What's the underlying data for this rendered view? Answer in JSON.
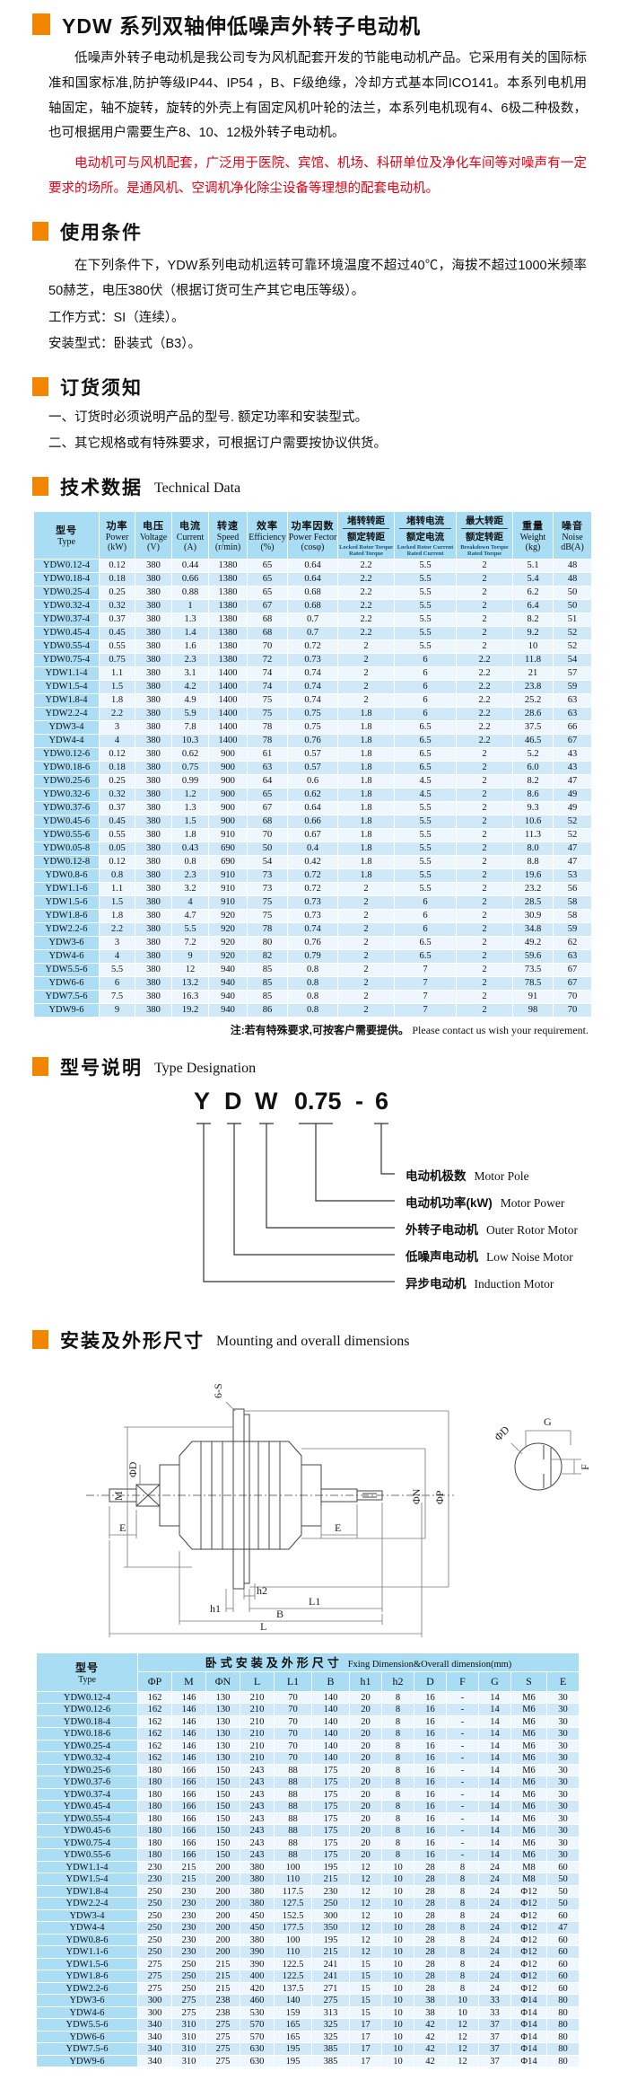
{
  "colors": {
    "accent_orange": "#f28600",
    "highlight_red": "#e60012",
    "table_header_blue": "#a9ddf3",
    "row_blue": "#cfe9f8",
    "row_pale": "#eef7fd"
  },
  "page": {
    "title_zh": "YDW 系列双轴伸低噪声外转子电动机",
    "intro_p1": "低噪声外转子电动机是我公司专为风机配套开发的节能电动机产品。它采用有关的国际标准和国家标准,防护等级IP44、IP54 ，B、F级绝缘，冷却方式基本同ICO141。本系列电机用轴固定，轴不旋转，旋转的外壳上有固定风机叶轮的法兰，本系列电机现有4、6极二种极数，也可根据用户需要生产8、10、12极外转子电动机。",
    "intro_p2": "电动机可与风机配套，广泛用于医院、宾馆、机场、科研单位及净化车间等对噪声有一定要求的场所。是通风机、空调机净化除尘设备等理想的配套电动机。"
  },
  "usage": {
    "heading_zh": "使用条件",
    "p1": "在下列条件下，YDW系列电动机运转可靠环境温度不超过40℃，海拔不超过1000米频率50赫芝，电压380伏（根据订货可生产其它电压等级）。",
    "line1": "工作方式：SI（连续）。",
    "line2": "安装型式：卧装式（B3）。"
  },
  "ordering": {
    "heading_zh": "订货须知",
    "item1": "一、订货时必须说明产品的型号. 额定功率和安装型式。",
    "item2": "二、其它规格或有特殊要求，可根据订户需要按协议供货。"
  },
  "tech": {
    "heading_zh": "技术数据",
    "heading_en": "Technical Data",
    "note_zh": "注:若有特殊要求,可按客户需要提供。",
    "note_en": "Please contact us wish your requirement.",
    "columns": [
      {
        "zh": "型号",
        "en": "Type"
      },
      {
        "zh": "功率",
        "en": "Power",
        "unit": "(kW)"
      },
      {
        "zh": "电压",
        "en": "Voltage",
        "unit": "(V)"
      },
      {
        "zh": "电流",
        "en": "Current",
        "unit": "(A)"
      },
      {
        "zh": "转速",
        "en": "Speed",
        "unit": "(r/min)"
      },
      {
        "zh": "效率",
        "en": "Efficiency",
        "unit": "(%)"
      },
      {
        "zh": "功率因数",
        "en": "Power Fector",
        "unit": "(cosφ)"
      },
      {
        "zh_top": "堵转转距",
        "zh_bot": "额定转距",
        "en": "Locked Rotor Torque Rated Torque"
      },
      {
        "zh_top": "堵转电流",
        "zh_bot": "额定电流",
        "en": "Locked Rotor Current Rated Current"
      },
      {
        "zh_top": "最大转距",
        "zh_bot": "额定转距",
        "en": "Breakdown Torque Rated Torque"
      },
      {
        "zh": "重量",
        "en": "Weight",
        "unit": "(kg)"
      },
      {
        "zh": "噪音",
        "en": "Noise",
        "unit": "dB(A)"
      }
    ],
    "rows": [
      [
        "YDW0.12-4",
        "0.12",
        "380",
        "0.44",
        "1380",
        "65",
        "0.64",
        "2.2",
        "5.5",
        "2",
        "5.1",
        "48"
      ],
      [
        "YDW0.18-4",
        "0.18",
        "380",
        "0.66",
        "1380",
        "65",
        "0.64",
        "2.2",
        "5.5",
        "2",
        "5.4",
        "48"
      ],
      [
        "YDW0.25-4",
        "0.25",
        "380",
        "0.88",
        "1380",
        "65",
        "0.68",
        "2.2",
        "5.5",
        "2",
        "6.2",
        "50"
      ],
      [
        "YDW0.32-4",
        "0.32",
        "380",
        "1",
        "1380",
        "67",
        "0.68",
        "2.2",
        "5.5",
        "2",
        "6.4",
        "50"
      ],
      [
        "YDW0.37-4",
        "0.37",
        "380",
        "1.3",
        "1380",
        "68",
        "0.7",
        "2.2",
        "5.5",
        "2",
        "8.2",
        "51"
      ],
      [
        "YDW0.45-4",
        "0.45",
        "380",
        "1.4",
        "1380",
        "68",
        "0.7",
        "2.2",
        "5.5",
        "2",
        "9.2",
        "52"
      ],
      [
        "YDW0.55-4",
        "0.55",
        "380",
        "1.6",
        "1380",
        "70",
        "0.72",
        "2",
        "5.5",
        "2",
        "10",
        "52"
      ],
      [
        "YDW0.75-4",
        "0.75",
        "380",
        "2.3",
        "1380",
        "72",
        "0.73",
        "2",
        "6",
        "2.2",
        "11.8",
        "54"
      ],
      [
        "YDW1.1-4",
        "1.1",
        "380",
        "3.1",
        "1400",
        "74",
        "0.74",
        "2",
        "6",
        "2.2",
        "21",
        "57"
      ],
      [
        "YDW1.5-4",
        "1.5",
        "380",
        "4.2",
        "1400",
        "74",
        "0.74",
        "2",
        "6",
        "2.2",
        "23.8",
        "59"
      ],
      [
        "YDW1.8-4",
        "1.8",
        "380",
        "4.9",
        "1400",
        "75",
        "0.74",
        "2",
        "6",
        "2.2",
        "25.2",
        "63"
      ],
      [
        "YDW2.2-4",
        "2.2",
        "380",
        "5.9",
        "1400",
        "75",
        "0.75",
        "1.8",
        "6",
        "2.2",
        "28.6",
        "63"
      ],
      [
        "YDW3-4",
        "3",
        "380",
        "7.8",
        "1400",
        "78",
        "0.75",
        "1.8",
        "6.5",
        "2.2",
        "37.5",
        "66"
      ],
      [
        "YDW4-4",
        "4",
        "380",
        "10.3",
        "1400",
        "78",
        "0.76",
        "1.8",
        "6.5",
        "2.2",
        "46.5",
        "67"
      ],
      [
        "YDW0.12-6",
        "0.12",
        "380",
        "0.62",
        "900",
        "61",
        "0.57",
        "1.8",
        "6.5",
        "2",
        "5.2",
        "43"
      ],
      [
        "YDW0.18-6",
        "0.18",
        "380",
        "0.75",
        "900",
        "63",
        "0.57",
        "1.8",
        "6.5",
        "2",
        "6.0",
        "43"
      ],
      [
        "YDW0.25-6",
        "0.25",
        "380",
        "0.99",
        "900",
        "64",
        "0.6",
        "1.8",
        "4.5",
        "2",
        "8.2",
        "47"
      ],
      [
        "YDW0.32-6",
        "0.32",
        "380",
        "1.2",
        "900",
        "65",
        "0.62",
        "1.8",
        "4.5",
        "2",
        "8.6",
        "49"
      ],
      [
        "YDW0.37-6",
        "0.37",
        "380",
        "1.3",
        "900",
        "67",
        "0.64",
        "1.8",
        "5.5",
        "2",
        "9.3",
        "49"
      ],
      [
        "YDW0.45-6",
        "0.45",
        "380",
        "1.5",
        "900",
        "68",
        "0.66",
        "1.8",
        "5.5",
        "2",
        "10.6",
        "52"
      ],
      [
        "YDW0.55-6",
        "0.55",
        "380",
        "1.8",
        "910",
        "70",
        "0.67",
        "1.8",
        "5.5",
        "2",
        "11.3",
        "52"
      ],
      [
        "YDW0.05-8",
        "0.05",
        "380",
        "0.43",
        "690",
        "50",
        "0.4",
        "1.8",
        "5.5",
        "2",
        "8.0",
        "47"
      ],
      [
        "YDW0.12-8",
        "0.12",
        "380",
        "0.8",
        "690",
        "54",
        "0.42",
        "1.8",
        "5.5",
        "2",
        "8.8",
        "47"
      ],
      [
        "YDW0.8-6",
        "0.8",
        "380",
        "2.3",
        "910",
        "73",
        "0.72",
        "1.8",
        "5.5",
        "2",
        "19.6",
        "53"
      ],
      [
        "YDW1.1-6",
        "1.1",
        "380",
        "3.2",
        "910",
        "73",
        "0.72",
        "2",
        "5.5",
        "2",
        "23.2",
        "56"
      ],
      [
        "YDW1.5-6",
        "1.5",
        "380",
        "4",
        "910",
        "75",
        "0.73",
        "2",
        "6",
        "2",
        "28.5",
        "58"
      ],
      [
        "YDW1.8-6",
        "1.8",
        "380",
        "4.7",
        "920",
        "75",
        "0.73",
        "2",
        "6",
        "2",
        "30.9",
        "58"
      ],
      [
        "YDW2.2-6",
        "2.2",
        "380",
        "5.5",
        "920",
        "78",
        "0.74",
        "2",
        "6",
        "2",
        "34.8",
        "59"
      ],
      [
        "YDW3-6",
        "3",
        "380",
        "7.2",
        "920",
        "80",
        "0.76",
        "2",
        "6.5",
        "2",
        "49.2",
        "62"
      ],
      [
        "YDW4-6",
        "4",
        "380",
        "9",
        "920",
        "82",
        "0.79",
        "2",
        "6.5",
        "2",
        "59.6",
        "63"
      ],
      [
        "YDW5.5-6",
        "5.5",
        "380",
        "12",
        "940",
        "85",
        "0.8",
        "2",
        "7",
        "2",
        "73.5",
        "67"
      ],
      [
        "YDW6-6",
        "6",
        "380",
        "13.2",
        "940",
        "85",
        "0.8",
        "2",
        "7",
        "2",
        "78.5",
        "67"
      ],
      [
        "YDW7.5-6",
        "7.5",
        "380",
        "16.3",
        "940",
        "85",
        "0.8",
        "2",
        "7",
        "2",
        "91",
        "70"
      ],
      [
        "YDW9-6",
        "9",
        "380",
        "19.2",
        "940",
        "86",
        "0.8",
        "2",
        "7",
        "2",
        "98",
        "70"
      ]
    ]
  },
  "type_designation": {
    "heading_zh": "型号说明",
    "heading_en": "Type Designation",
    "code_parts": [
      "Y",
      "D",
      "W",
      "0.75",
      "-",
      "6"
    ],
    "labels": [
      {
        "zh": "电动机极数",
        "en": "Motor Pole"
      },
      {
        "zh": "电动机功率(kW)",
        "en": "Motor  Power"
      },
      {
        "zh": "外转子电动机",
        "en": "Outer Rotor Motor"
      },
      {
        "zh": "低噪声电动机",
        "en": "Low Noise Motor"
      },
      {
        "zh": "异步电动机",
        "en": "Induction Motor"
      }
    ]
  },
  "mounting": {
    "heading_zh": "安装及外形尺寸",
    "heading_en": "Mounting and overall dimensions",
    "drawing_labels": {
      "six_s": "6-S",
      "m": "M",
      "phi_d": "ΦD",
      "e_left": "E",
      "e_right": "E",
      "phi_n": "ΦN",
      "phi_p": "ΦP",
      "h1": "h1",
      "h2": "h2",
      "l1": "L1",
      "b": "B",
      "l": "L",
      "g": "G",
      "f": "F",
      "phi_d_key": "ΦD"
    },
    "band_zh": "卧式安装及外形尺寸",
    "band_en": "Fxing Dimension&Overall dimension(mm)",
    "col_type_zh": "型号",
    "col_type_en": "Type",
    "columns": [
      "ΦP",
      "M",
      "ΦN",
      "L",
      "L1",
      "B",
      "h1",
      "h2",
      "D",
      "F",
      "G",
      "S",
      "E"
    ],
    "rows": [
      [
        "YDW0.12-4",
        "162",
        "146",
        "130",
        "210",
        "70",
        "140",
        "20",
        "8",
        "16",
        "-",
        "14",
        "M6",
        "30"
      ],
      [
        "YDW0.12-6",
        "162",
        "146",
        "130",
        "210",
        "70",
        "140",
        "20",
        "8",
        "16",
        "-",
        "14",
        "M6",
        "30"
      ],
      [
        "YDW0.18-4",
        "162",
        "146",
        "130",
        "210",
        "70",
        "140",
        "20",
        "8",
        "16",
        "-",
        "14",
        "M6",
        "30"
      ],
      [
        "YDW0.18-6",
        "162",
        "146",
        "130",
        "210",
        "70",
        "140",
        "20",
        "8",
        "16",
        "-",
        "14",
        "M6",
        "30"
      ],
      [
        "YDW0.25-4",
        "162",
        "146",
        "130",
        "210",
        "70",
        "140",
        "20",
        "8",
        "16",
        "-",
        "14",
        "M6",
        "30"
      ],
      [
        "YDW0.32-4",
        "162",
        "146",
        "130",
        "210",
        "70",
        "140",
        "20",
        "8",
        "16",
        "-",
        "14",
        "M6",
        "30"
      ],
      [
        "YDW0.25-6",
        "180",
        "166",
        "150",
        "243",
        "88",
        "175",
        "20",
        "8",
        "16",
        "-",
        "14",
        "M6",
        "30"
      ],
      [
        "YDW0.37-6",
        "180",
        "166",
        "150",
        "243",
        "88",
        "175",
        "20",
        "8",
        "16",
        "-",
        "14",
        "M6",
        "30"
      ],
      [
        "YDW0.37-4",
        "180",
        "166",
        "150",
        "243",
        "88",
        "175",
        "20",
        "8",
        "16",
        "-",
        "14",
        "M6",
        "30"
      ],
      [
        "YDW0.45-4",
        "180",
        "166",
        "150",
        "243",
        "88",
        "175",
        "20",
        "8",
        "16",
        "-",
        "14",
        "M6",
        "30"
      ],
      [
        "YDW0.55-4",
        "180",
        "166",
        "150",
        "243",
        "88",
        "175",
        "20",
        "8",
        "16",
        "-",
        "14",
        "M6",
        "30"
      ],
      [
        "YDW0.45-6",
        "180",
        "166",
        "150",
        "243",
        "88",
        "175",
        "20",
        "8",
        "16",
        "-",
        "14",
        "M6",
        "30"
      ],
      [
        "YDW0.75-4",
        "180",
        "166",
        "150",
        "243",
        "88",
        "175",
        "20",
        "8",
        "16",
        "-",
        "14",
        "M6",
        "30"
      ],
      [
        "YDW0.55-6",
        "180",
        "166",
        "150",
        "243",
        "88",
        "175",
        "20",
        "8",
        "16",
        "-",
        "14",
        "M6",
        "30"
      ],
      [
        "YDW1.1-4",
        "230",
        "215",
        "200",
        "380",
        "100",
        "195",
        "12",
        "10",
        "28",
        "8",
        "24",
        "M8",
        "60"
      ],
      [
        "YDW1.5-4",
        "230",
        "215",
        "200",
        "380",
        "110",
        "215",
        "12",
        "10",
        "28",
        "8",
        "24",
        "M8",
        "50"
      ],
      [
        "YDW1.8-4",
        "250",
        "230",
        "200",
        "380",
        "117.5",
        "230",
        "12",
        "10",
        "28",
        "8",
        "24",
        "Φ12",
        "50"
      ],
      [
        "YDW2.2-4",
        "250",
        "230",
        "200",
        "380",
        "127.5",
        "250",
        "12",
        "10",
        "28",
        "8",
        "24",
        "Φ12",
        "50"
      ],
      [
        "YDW3-4",
        "250",
        "230",
        "200",
        "450",
        "152.5",
        "300",
        "12",
        "10",
        "28",
        "8",
        "24",
        "Φ12",
        "60"
      ],
      [
        "YDW4-4",
        "250",
        "230",
        "200",
        "450",
        "177.5",
        "350",
        "12",
        "10",
        "28",
        "8",
        "24",
        "Φ12",
        "47"
      ],
      [
        "YDW0.8-6",
        "250",
        "230",
        "200",
        "380",
        "100",
        "195",
        "12",
        "10",
        "28",
        "8",
        "24",
        "Φ12",
        "60"
      ],
      [
        "YDW1.1-6",
        "250",
        "230",
        "200",
        "390",
        "110",
        "215",
        "12",
        "10",
        "28",
        "8",
        "24",
        "Φ12",
        "60"
      ],
      [
        "YDW1.5-6",
        "275",
        "250",
        "215",
        "390",
        "122.5",
        "241",
        "15",
        "10",
        "28",
        "8",
        "24",
        "Φ12",
        "60"
      ],
      [
        "YDW1.8-6",
        "275",
        "250",
        "215",
        "400",
        "122.5",
        "241",
        "15",
        "10",
        "28",
        "8",
        "24",
        "Φ12",
        "60"
      ],
      [
        "YDW2.2-6",
        "275",
        "250",
        "215",
        "420",
        "137.5",
        "271",
        "15",
        "10",
        "28",
        "8",
        "24",
        "Φ12",
        "60"
      ],
      [
        "YDW3-6",
        "300",
        "275",
        "238",
        "460",
        "140",
        "275",
        "15",
        "10",
        "38",
        "10",
        "33",
        "Φ14",
        "80"
      ],
      [
        "YDW4-6",
        "300",
        "275",
        "238",
        "530",
        "159",
        "313",
        "15",
        "10",
        "38",
        "10",
        "33",
        "Φ14",
        "80"
      ],
      [
        "YDW5.5-6",
        "340",
        "310",
        "275",
        "570",
        "165",
        "325",
        "17",
        "10",
        "42",
        "12",
        "37",
        "Φ14",
        "80"
      ],
      [
        "YDW6-6",
        "340",
        "310",
        "275",
        "570",
        "165",
        "325",
        "17",
        "10",
        "42",
        "12",
        "37",
        "Φ14",
        "80"
      ],
      [
        "YDW7.5-6",
        "340",
        "310",
        "275",
        "630",
        "195",
        "385",
        "17",
        "10",
        "42",
        "12",
        "37",
        "Φ14",
        "80"
      ],
      [
        "YDW9-6",
        "340",
        "310",
        "275",
        "630",
        "195",
        "385",
        "17",
        "10",
        "42",
        "12",
        "37",
        "Φ14",
        "80"
      ]
    ]
  }
}
